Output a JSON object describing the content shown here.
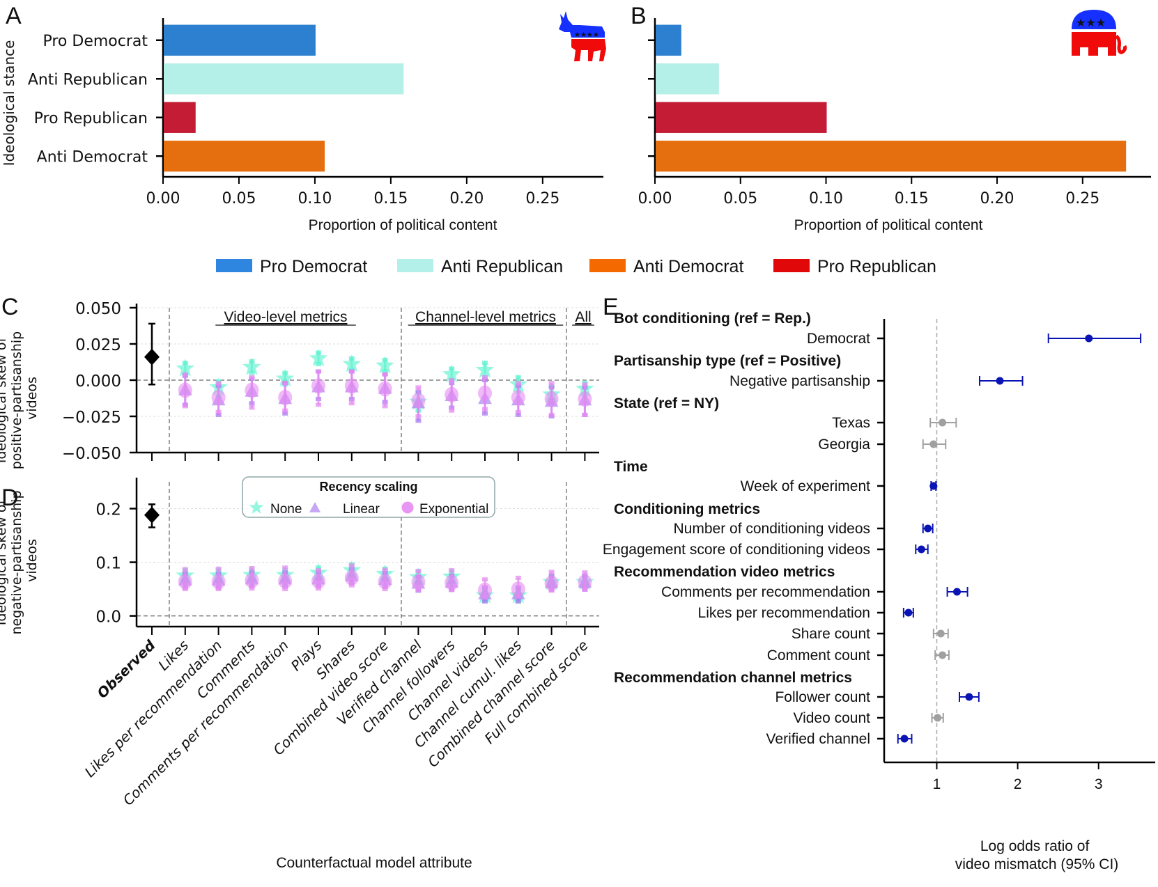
{
  "panel_letters": [
    "A",
    "B",
    "C",
    "D",
    "E"
  ],
  "shared_legend": [
    {
      "label": "Pro Democrat",
      "color": "#2f86e0"
    },
    {
      "label": "Anti Republican",
      "color": "#b3f0ea"
    },
    {
      "label": "Anti Democrat",
      "color": "#f56a00"
    },
    {
      "label": "Pro Republican",
      "color": "#e00808"
    }
  ],
  "chart_data": [
    {
      "id": "A",
      "type": "bar",
      "orientation": "horizontal",
      "icon": "democrat-donkey",
      "categories": [
        "Pro Democrat",
        "Anti Republican",
        "Pro Republican",
        "Anti Democrat"
      ],
      "values": [
        0.1,
        0.158,
        0.021,
        0.106
      ],
      "colors": [
        "#2d80cf",
        "#b4efe8",
        "#c41c35",
        "#e56f0e"
      ],
      "xlabel": "Proportion of political content",
      "ylabel": "Ideological stance",
      "xlim": [
        0,
        0.29
      ],
      "xticks": [
        "0.00",
        "0.05",
        "0.10",
        "0.15",
        "0.20",
        "0.25"
      ],
      "xtick_values": [
        0,
        0.05,
        0.1,
        0.15,
        0.2,
        0.25
      ]
    },
    {
      "id": "B",
      "type": "bar",
      "orientation": "horizontal",
      "icon": "republican-elephant",
      "categories": [
        "Pro Democrat",
        "Anti Republican",
        "Pro Republican",
        "Anti Democrat"
      ],
      "values": [
        0.015,
        0.037,
        0.1,
        0.275
      ],
      "colors": [
        "#2d80cf",
        "#b4efe8",
        "#c41c35",
        "#e56f0e"
      ],
      "xlabel": "Proportion of political content",
      "ylabel": "",
      "xlim": [
        0,
        0.29
      ],
      "xticks": [
        "0.00",
        "0.05",
        "0.10",
        "0.15",
        "0.20",
        "0.25"
      ],
      "xtick_values": [
        0,
        0.05,
        0.1,
        0.15,
        0.2,
        0.25
      ]
    },
    {
      "id": "C",
      "type": "scatter",
      "ylabel": "Ideological skew of positive-partisanship videos",
      "ylim": [
        -0.05,
        0.05
      ],
      "yticks": [
        "0.050",
        "0.025",
        "0.000",
        "−0.025",
        "−0.050"
      ],
      "ytick_values": [
        0.05,
        0.025,
        0,
        -0.025,
        -0.05
      ],
      "section_labels": [
        "Video-level metrics",
        "Channel-level metrics",
        "All"
      ],
      "observed": {
        "value": 0.016,
        "lo": -0.003,
        "hi": 0.039
      },
      "series": [
        {
          "name": "None",
          "marker": "star",
          "color": "#5ef2cf",
          "values": [
            0.008,
            -0.005,
            0.009,
            0.001,
            0.015,
            0.011,
            0.01,
            -0.015,
            0.004,
            0.007,
            -0.003,
            -0.01,
            -0.006
          ],
          "lo": [
            0.004,
            -0.011,
            0.005,
            -0.003,
            0.011,
            0.007,
            0.006,
            -0.021,
            0.0,
            0.002,
            -0.008,
            -0.016,
            -0.01
          ],
          "hi": [
            0.012,
            -0.001,
            0.013,
            0.005,
            0.019,
            0.015,
            0.014,
            -0.009,
            0.008,
            0.012,
            0.002,
            -0.004,
            -0.002
          ]
        },
        {
          "name": "Linear",
          "marker": "triangle",
          "color": "#a878f0",
          "values": [
            -0.007,
            -0.014,
            -0.008,
            -0.013,
            -0.005,
            -0.005,
            -0.006,
            -0.016,
            -0.011,
            -0.013,
            -0.014,
            -0.015,
            -0.014
          ],
          "lo": [
            -0.017,
            -0.024,
            -0.016,
            -0.023,
            -0.013,
            -0.013,
            -0.015,
            -0.028,
            -0.019,
            -0.023,
            -0.024,
            -0.025,
            -0.024
          ],
          "hi": [
            0.003,
            -0.004,
            0.001,
            -0.002,
            0.006,
            0.006,
            0.004,
            -0.008,
            -0.002,
            0.0,
            -0.004,
            -0.005,
            -0.005
          ]
        },
        {
          "name": "Exponential",
          "marker": "circle",
          "color": "#e68af2",
          "values": [
            -0.007,
            -0.012,
            -0.007,
            -0.012,
            -0.004,
            -0.004,
            -0.006,
            -0.014,
            -0.01,
            -0.009,
            -0.012,
            -0.013,
            -0.013
          ],
          "lo": [
            -0.018,
            -0.022,
            -0.019,
            -0.021,
            -0.017,
            -0.016,
            -0.018,
            -0.025,
            -0.021,
            -0.02,
            -0.022,
            -0.024,
            -0.024
          ],
          "hi": [
            0.004,
            -0.002,
            0.002,
            -0.002,
            0.006,
            0.006,
            0.004,
            -0.005,
            0.0,
            0.002,
            -0.002,
            -0.002,
            -0.003
          ]
        }
      ]
    },
    {
      "id": "D",
      "type": "scatter",
      "ylabel": "Ideological skew of negative-partisanship videos",
      "ylim": [
        -0.02,
        0.25
      ],
      "yticks": [
        "0.2",
        "0.1",
        "0.0"
      ],
      "ytick_values": [
        0.2,
        0.1,
        0.0
      ],
      "legend_title": "Recency scaling",
      "observed": {
        "value": 0.188,
        "lo": 0.165,
        "hi": 0.208
      },
      "xlabel": "Counterfactual model attribute",
      "xticks": [
        "Observed",
        "Likes",
        "Likes per recommendation",
        "Comments",
        "Comments per recommendation",
        "Plays",
        "Shares",
        "Combined video score",
        "Verified channel",
        "Channel followers",
        "Channel videos",
        "Channel cumul. likes",
        "Combined channel score",
        "Full combined score"
      ],
      "series": [
        {
          "name": "None",
          "marker": "star",
          "color": "#5ef2cf",
          "values": [
            0.075,
            0.075,
            0.076,
            0.076,
            0.08,
            0.085,
            0.078,
            0.072,
            0.073,
            0.038,
            0.038,
            0.063,
            0.063
          ],
          "lo": [
            0.065,
            0.065,
            0.066,
            0.066,
            0.07,
            0.075,
            0.068,
            0.062,
            0.063,
            0.028,
            0.027,
            0.053,
            0.053
          ],
          "hi": [
            0.085,
            0.085,
            0.086,
            0.086,
            0.09,
            0.096,
            0.088,
            0.082,
            0.083,
            0.048,
            0.049,
            0.073,
            0.073
          ]
        },
        {
          "name": "Linear",
          "marker": "triangle",
          "color": "#a878f0",
          "values": [
            0.066,
            0.066,
            0.068,
            0.068,
            0.068,
            0.074,
            0.067,
            0.06,
            0.062,
            0.04,
            0.04,
            0.062,
            0.062
          ],
          "lo": [
            0.053,
            0.053,
            0.055,
            0.055,
            0.055,
            0.061,
            0.054,
            0.047,
            0.049,
            0.027,
            0.027,
            0.049,
            0.049
          ],
          "hi": [
            0.079,
            0.079,
            0.081,
            0.081,
            0.081,
            0.087,
            0.08,
            0.073,
            0.075,
            0.053,
            0.053,
            0.075,
            0.075
          ]
        },
        {
          "name": "Exponential",
          "marker": "circle",
          "color": "#e68af2",
          "values": [
            0.064,
            0.064,
            0.066,
            0.065,
            0.065,
            0.071,
            0.064,
            0.063,
            0.062,
            0.048,
            0.05,
            0.061,
            0.063
          ],
          "lo": [
            0.05,
            0.05,
            0.051,
            0.05,
            0.051,
            0.057,
            0.05,
            0.049,
            0.048,
            0.034,
            0.036,
            0.047,
            0.049
          ],
          "hi": [
            0.087,
            0.088,
            0.089,
            0.09,
            0.085,
            0.094,
            0.086,
            0.084,
            0.085,
            0.068,
            0.071,
            0.082,
            0.081
          ]
        }
      ]
    },
    {
      "id": "E",
      "type": "scatter",
      "subtype": "forest-plot",
      "xlabel": "Log odds ratio of video mismatch (95% CI)",
      "xlim": [
        0.35,
        3.7
      ],
      "xticks": [
        "1",
        "2",
        "3"
      ],
      "xtick_values": [
        1,
        2,
        3
      ],
      "reference_line": 1,
      "rows": [
        {
          "kind": "header",
          "label": "Bot conditioning (ref = Rep.)"
        },
        {
          "kind": "item",
          "label": "Democrat",
          "value": 2.88,
          "lo": 2.38,
          "hi": 3.52,
          "significant": true
        },
        {
          "kind": "header",
          "label": "Partisanship type (ref = Positive)"
        },
        {
          "kind": "item",
          "label": "Negative partisanship",
          "value": 1.78,
          "lo": 1.53,
          "hi": 2.06,
          "significant": true
        },
        {
          "kind": "header",
          "label": "State (ref = NY)"
        },
        {
          "kind": "item",
          "label": "Texas",
          "value": 1.07,
          "lo": 0.92,
          "hi": 1.24,
          "significant": false
        },
        {
          "kind": "item",
          "label": "Georgia",
          "value": 0.96,
          "lo": 0.83,
          "hi": 1.11,
          "significant": false
        },
        {
          "kind": "header",
          "label": "Time"
        },
        {
          "kind": "item",
          "label": "Week of experiment",
          "value": 0.96,
          "lo": 0.93,
          "hi": 0.99,
          "significant": true
        },
        {
          "kind": "header",
          "label": "Conditioning metrics"
        },
        {
          "kind": "item",
          "label": "Number of conditioning videos",
          "value": 0.89,
          "lo": 0.83,
          "hi": 0.95,
          "significant": true
        },
        {
          "kind": "item",
          "label": "Engagement score of conditioning videos",
          "value": 0.81,
          "lo": 0.74,
          "hi": 0.89,
          "significant": true
        },
        {
          "kind": "header",
          "label": "Recommendation video metrics"
        },
        {
          "kind": "item",
          "label": "Comments per recommendation",
          "value": 1.25,
          "lo": 1.13,
          "hi": 1.38,
          "significant": true
        },
        {
          "kind": "item",
          "label": "Likes per recommendation",
          "value": 0.65,
          "lo": 0.59,
          "hi": 0.71,
          "significant": true
        },
        {
          "kind": "item",
          "label": "Share count",
          "value": 1.05,
          "lo": 0.96,
          "hi": 1.14,
          "significant": false
        },
        {
          "kind": "item",
          "label": "Comment count",
          "value": 1.07,
          "lo": 0.98,
          "hi": 1.15,
          "significant": false
        },
        {
          "kind": "header",
          "label": "Recommendation channel metrics"
        },
        {
          "kind": "item",
          "label": "Follower count",
          "value": 1.4,
          "lo": 1.28,
          "hi": 1.52,
          "significant": true
        },
        {
          "kind": "item",
          "label": "Video count",
          "value": 1.01,
          "lo": 0.94,
          "hi": 1.08,
          "significant": false
        },
        {
          "kind": "item",
          "label": "Verified channel",
          "value": 0.6,
          "lo": 0.52,
          "hi": 0.69,
          "significant": true
        }
      ],
      "colors": {
        "significant": "#0a14b4",
        "nonsignificant": "#a0a0a0"
      }
    }
  ]
}
